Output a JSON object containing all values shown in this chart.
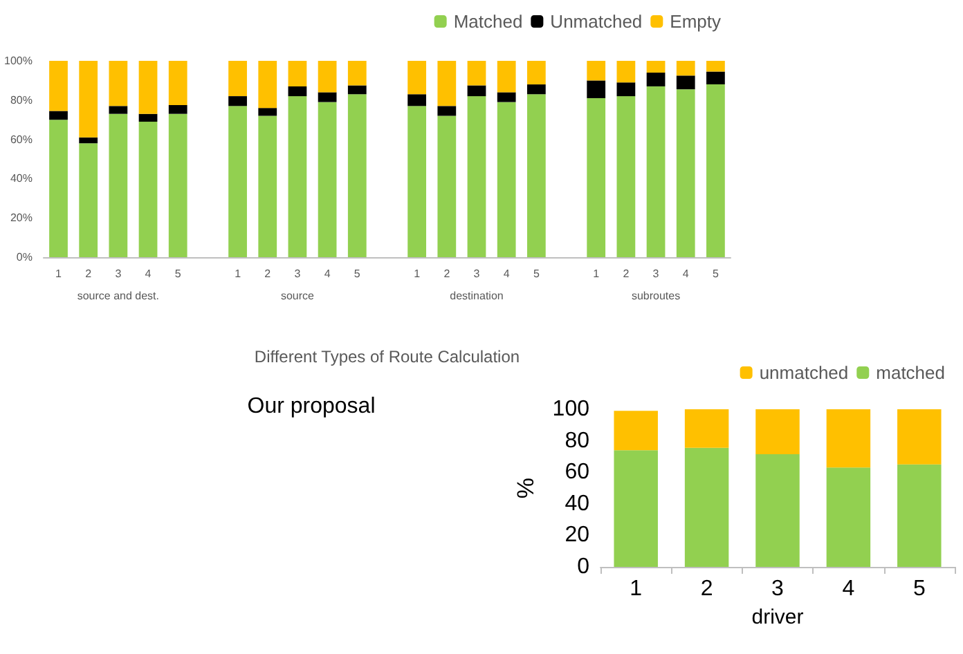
{
  "chart_data": [
    {
      "type": "bar",
      "stacked": true,
      "xlabel": "Different Types of Route Calculation",
      "categories": [
        "1",
        "2",
        "3",
        "4",
        "5",
        null,
        "1",
        "2",
        "3",
        "4",
        "5",
        null,
        "1",
        "2",
        "3",
        "4",
        "5",
        null,
        "1",
        "2",
        "3",
        "4",
        "5"
      ],
      "series": [
        {
          "name": "Matched",
          "color": "#92d050",
          "values": [
            70,
            58,
            73,
            69,
            73,
            null,
            77,
            72,
            82,
            79,
            83,
            null,
            77,
            72,
            82,
            79,
            83,
            null,
            81,
            82,
            87,
            85.5,
            88
          ]
        },
        {
          "name": "Unmatched",
          "color": "#000000",
          "values": [
            4.5,
            3,
            4,
            4,
            4.5,
            null,
            5,
            4,
            5,
            5,
            4.5,
            null,
            6,
            5,
            5.5,
            5,
            5,
            null,
            9,
            7,
            7,
            7,
            6.5
          ]
        },
        {
          "name": "Empty",
          "color": "#ffc000",
          "values": [
            25.5,
            39,
            23,
            27,
            22.5,
            null,
            18,
            24,
            13,
            16,
            12.5,
            null,
            17,
            23,
            12.5,
            16,
            12,
            null,
            10,
            11,
            6,
            7.5,
            5.5
          ]
        }
      ],
      "ylim": [
        0,
        100
      ],
      "yticks": [
        {
          "value": 0,
          "label": "0%"
        },
        {
          "value": 20,
          "label": "20%"
        },
        {
          "value": 40,
          "label": "40%"
        },
        {
          "value": 60,
          "label": "60%"
        },
        {
          "value": 80,
          "label": "80%"
        },
        {
          "value": 100,
          "label": "100%"
        }
      ],
      "annotations": [
        "source and dest.",
        "source",
        "destination",
        "subroutes",
        "Our proposal"
      ],
      "legend": "top right",
      "grid": false
    },
    {
      "type": "bar",
      "stacked": true,
      "xlabel": "driver",
      "ylabel": "%",
      "categories": [
        "1",
        "2",
        "3",
        "4",
        "5"
      ],
      "series": [
        {
          "name": "matched",
          "color": "#92d050",
          "values": [
            74,
            75.5,
            71.5,
            63,
            65
          ]
        },
        {
          "name": "unmatched",
          "color": "#ffc000",
          "values": [
            25,
            24.5,
            28.5,
            37,
            35
          ]
        }
      ],
      "ylim": [
        0,
        100
      ],
      "yticks": [
        0,
        20,
        40,
        60,
        80,
        100
      ],
      "legend": "top right",
      "grid": false
    }
  ]
}
